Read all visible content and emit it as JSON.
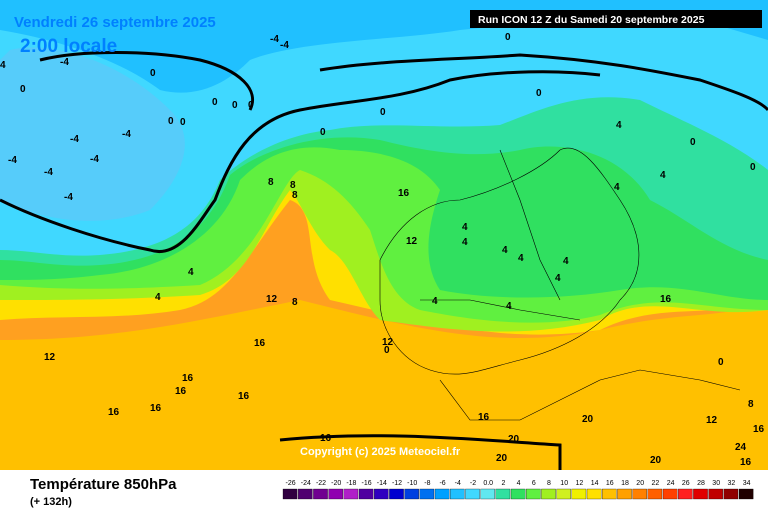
{
  "header": {
    "date": "Vendredi 26 septembre 2025",
    "time": "2:00 locale",
    "run": "Run ICON 12 Z du Samedi 20 septembre 2025"
  },
  "copyright": "Copyright (c) 2025 Meteociel.fr",
  "footer": {
    "title": "Température 850hPa",
    "lead": "(+ 132h)"
  },
  "scale": [
    {
      "label": "-26",
      "color": "#300040"
    },
    {
      "label": "-24",
      "color": "#500070"
    },
    {
      "label": "-22",
      "color": "#700090"
    },
    {
      "label": "-20",
      "color": "#9000b0"
    },
    {
      "label": "-18",
      "color": "#b020c8"
    },
    {
      "label": "-16",
      "color": "#5000a0"
    },
    {
      "label": "-14",
      "color": "#3000c0"
    },
    {
      "label": "-12",
      "color": "#0000d0"
    },
    {
      "label": "-10",
      "color": "#0040e0"
    },
    {
      "label": "-8",
      "color": "#0070f0"
    },
    {
      "label": "-6",
      "color": "#00a0ff"
    },
    {
      "label": "-4",
      "color": "#20c0ff"
    },
    {
      "label": "-2",
      "color": "#40d8ff"
    },
    {
      "label": "0.0",
      "color": "#60e8f0"
    },
    {
      "label": "2",
      "color": "#30e0a0"
    },
    {
      "label": "4",
      "color": "#30e060"
    },
    {
      "label": "6",
      "color": "#60f040"
    },
    {
      "label": "8",
      "color": "#a0f020"
    },
    {
      "label": "10",
      "color": "#d0f020"
    },
    {
      "label": "12",
      "color": "#f0f000"
    },
    {
      "label": "14",
      "color": "#ffe000"
    },
    {
      "label": "16",
      "color": "#ffc000"
    },
    {
      "label": "18",
      "color": "#ffa000"
    },
    {
      "label": "20",
      "color": "#ff8000"
    },
    {
      "label": "22",
      "color": "#ff6000"
    },
    {
      "label": "24",
      "color": "#ff4000"
    },
    {
      "label": "26",
      "color": "#ff2020"
    },
    {
      "label": "28",
      "color": "#e00000"
    },
    {
      "label": "30",
      "color": "#c00000"
    },
    {
      "label": "32",
      "color": "#900000"
    },
    {
      "label": "34",
      "color": "#200000"
    }
  ],
  "map_labels": [
    "-4",
    "-4",
    "0",
    "4",
    "-4",
    "0",
    "0",
    "-4",
    "0",
    "0",
    "0",
    "-4",
    "-4",
    "-4",
    "-4",
    "-4",
    "0",
    "0",
    "0",
    "0",
    "8",
    "8",
    "8",
    "12",
    "8",
    "12",
    "12",
    "16",
    "16",
    "16",
    "16",
    "16",
    "16",
    "16",
    "12",
    "4",
    "4",
    "4",
    "4",
    "4",
    "4",
    "4",
    "4",
    "4",
    "4",
    "4",
    "4",
    "0",
    "0",
    "4",
    "0",
    "0",
    "8",
    "12",
    "20",
    "20",
    "20",
    "16",
    "16",
    "16",
    "20",
    "24",
    "16",
    "16",
    "0"
  ]
}
